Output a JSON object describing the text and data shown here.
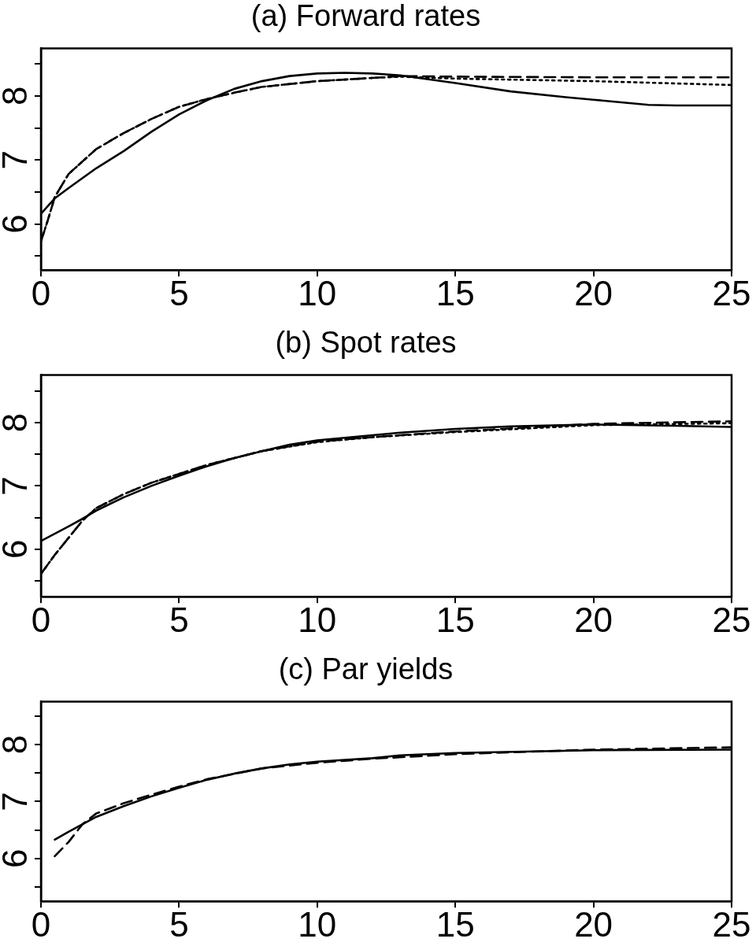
{
  "chart_data": [
    {
      "type": "line",
      "title": "(a) Forward rates",
      "xlim": [
        0,
        25
      ],
      "ylim": [
        5.28,
        8.74
      ],
      "xticks": [
        0,
        5,
        10,
        15,
        20,
        25
      ],
      "yticks": [
        {
          "value": 5.5,
          "label": null
        },
        6,
        {
          "value": 6.5,
          "label": null
        },
        7,
        {
          "value": 7.5,
          "label": null
        },
        8,
        {
          "value": 8.5,
          "label": null
        }
      ],
      "marker": "none",
      "grid": false,
      "series": [
        {
          "color": "#000000",
          "line_style": "solid",
          "x": [
            0,
            0.5,
            1,
            2,
            3,
            4,
            5,
            6,
            7,
            8,
            9,
            10,
            11,
            12,
            13,
            15,
            17,
            19,
            20,
            21,
            22,
            23,
            25
          ],
          "values": [
            6.16,
            6.4,
            6.56,
            6.87,
            7.14,
            7.44,
            7.71,
            7.93,
            8.11,
            8.23,
            8.31,
            8.35,
            8.36,
            8.35,
            8.32,
            8.2,
            8.07,
            7.98,
            7.94,
            7.9,
            7.86,
            7.85,
            7.85
          ]
        },
        {
          "color": "#000000",
          "line_style": "dashed",
          "x": [
            0,
            0.25,
            0.5,
            1,
            2,
            3,
            4,
            5,
            6,
            7,
            8,
            10,
            12,
            13,
            15,
            20,
            25
          ],
          "values": [
            5.73,
            6.06,
            6.42,
            6.78,
            7.17,
            7.42,
            7.64,
            7.83,
            7.95,
            8.05,
            8.14,
            8.23,
            8.28,
            8.31,
            8.3,
            8.29,
            8.29
          ]
        },
        {
          "color": "#000000",
          "line_style": "dotted",
          "x": [
            0,
            0.25,
            0.5,
            1,
            2,
            3,
            4,
            5,
            6,
            7,
            8,
            10,
            12,
            13,
            15,
            20,
            25
          ],
          "values": [
            5.73,
            6.06,
            6.42,
            6.78,
            7.17,
            7.42,
            7.64,
            7.83,
            7.95,
            8.05,
            8.14,
            8.23,
            8.28,
            8.3,
            8.27,
            8.23,
            8.17
          ]
        }
      ]
    },
    {
      "type": "line",
      "title": "(b) Spot rates",
      "xlim": [
        0,
        25
      ],
      "ylim": [
        5.25,
        8.75
      ],
      "xticks": [
        0,
        5,
        10,
        15,
        20,
        25
      ],
      "yticks": [
        {
          "value": 5.5,
          "label": null
        },
        6,
        {
          "value": 6.5,
          "label": null
        },
        7,
        {
          "value": 7.5,
          "label": null
        },
        8,
        {
          "value": 8.5,
          "label": null
        }
      ],
      "marker": "none",
      "grid": false,
      "series": [
        {
          "color": "#000000",
          "line_style": "solid",
          "x": [
            0,
            1,
            1.5,
            2,
            3,
            4,
            5,
            6,
            7,
            8,
            9,
            10,
            12,
            13,
            15,
            17,
            20,
            23,
            25
          ],
          "values": [
            6.13,
            6.36,
            6.48,
            6.61,
            6.82,
            7.0,
            7.16,
            7.31,
            7.44,
            7.55,
            7.65,
            7.72,
            7.8,
            7.84,
            7.9,
            7.94,
            7.97,
            7.95,
            7.93
          ]
        },
        {
          "color": "#000000",
          "line_style": "dashed",
          "x": [
            0,
            0.5,
            1,
            1.5,
            2,
            3,
            4,
            5,
            6,
            7,
            8,
            10,
            12,
            15,
            20,
            25
          ],
          "values": [
            5.61,
            5.91,
            6.18,
            6.45,
            6.65,
            6.87,
            7.05,
            7.19,
            7.33,
            7.44,
            7.55,
            7.7,
            7.77,
            7.86,
            7.98,
            8.02
          ]
        },
        {
          "color": "#000000",
          "line_style": "dotted",
          "x": [
            0,
            0.5,
            1,
            1.5,
            2,
            3,
            4,
            5,
            6,
            7,
            8,
            10,
            12,
            15,
            20,
            25
          ],
          "values": [
            5.61,
            5.91,
            6.18,
            6.45,
            6.65,
            6.87,
            7.05,
            7.19,
            7.33,
            7.44,
            7.55,
            7.69,
            7.77,
            7.85,
            7.96,
            7.99
          ]
        }
      ]
    },
    {
      "type": "line",
      "title": "(c) Par yields",
      "xlim": [
        0,
        25
      ],
      "ylim": [
        5.25,
        8.75
      ],
      "xticks": [
        0,
        5,
        10,
        15,
        20,
        25
      ],
      "yticks": [
        {
          "value": 5.5,
          "label": null
        },
        6,
        {
          "value": 6.5,
          "label": null
        },
        7,
        {
          "value": 7.5,
          "label": null
        },
        8,
        {
          "value": 8.5,
          "label": null
        }
      ],
      "marker": "none",
      "grid": false,
      "series": [
        {
          "color": "#000000",
          "line_style": "solid",
          "x": [
            0.5,
            1,
            1.5,
            2,
            3,
            4,
            5,
            6,
            7,
            8,
            9,
            10,
            12,
            13,
            15,
            20,
            25
          ],
          "values": [
            6.33,
            6.47,
            6.6,
            6.73,
            6.92,
            7.09,
            7.24,
            7.38,
            7.49,
            7.58,
            7.65,
            7.7,
            7.76,
            7.81,
            7.85,
            7.9,
            7.91
          ]
        },
        {
          "color": "#000000",
          "line_style": "dashed",
          "x": [
            0.5,
            1,
            1.5,
            2,
            3,
            4,
            5,
            6,
            8,
            10,
            12,
            15,
            20,
            25
          ],
          "values": [
            6.04,
            6.29,
            6.6,
            6.79,
            6.97,
            7.12,
            7.26,
            7.39,
            7.58,
            7.68,
            7.75,
            7.83,
            7.91,
            7.95
          ]
        }
      ]
    }
  ]
}
